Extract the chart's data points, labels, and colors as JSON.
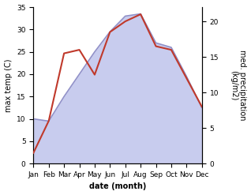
{
  "months": [
    "Jan",
    "Feb",
    "Mar",
    "Apr",
    "May",
    "Jun",
    "Jul",
    "Aug",
    "Sep",
    "Oct",
    "Nov",
    "Dec"
  ],
  "temperature": [
    10.0,
    9.5,
    15.0,
    20.0,
    25.0,
    29.5,
    33.0,
    33.5,
    27.0,
    26.0,
    19.5,
    12.5
  ],
  "precipitation": [
    1.5,
    6.0,
    15.5,
    16.0,
    12.5,
    18.5,
    20.0,
    21.0,
    16.5,
    16.0,
    12.0,
    8.0
  ],
  "temp_color": "#9090c8",
  "temp_fill_color": "#c8ccee",
  "precip_color": "#c0392b",
  "temp_ylim": [
    0,
    35
  ],
  "precip_ylim": [
    0,
    22
  ],
  "xlabel": "date (month)",
  "ylabel_left": "max temp (C)",
  "ylabel_right": "med. precipitation\n(kg/m2)",
  "axis_fontsize": 7,
  "tick_fontsize": 6.5,
  "background_color": "#ffffff"
}
